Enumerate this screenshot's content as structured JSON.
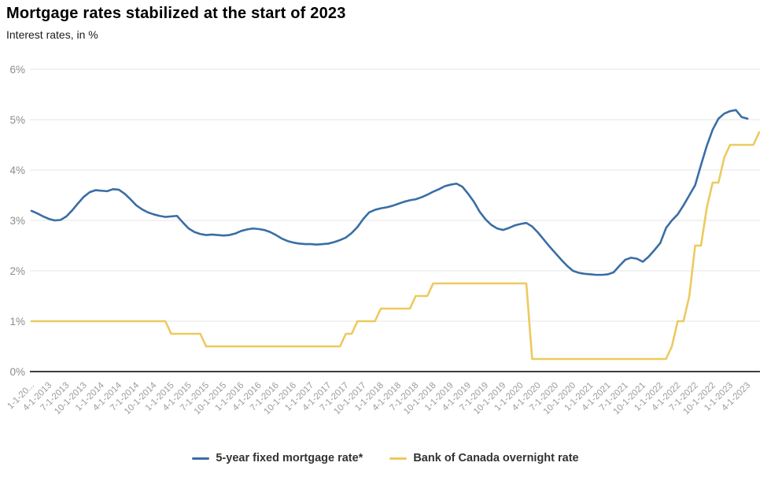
{
  "header": {
    "title": "Mortgage rates stabilized at the start of 2023",
    "subtitle": "Interest rates, in %"
  },
  "legend": {
    "items": [
      {
        "label": "5-year fixed mortgage rate*"
      },
      {
        "label": "Bank of Canada overnight rate"
      }
    ]
  },
  "chart_data": {
    "type": "line",
    "title": "Mortgage rates stabilized at the start of 2023",
    "subtitle": "Interest rates, in %",
    "x_unit": "monthly from 1-2013",
    "x_tick_labels": [
      "1-1-20...",
      "4-1-2013",
      "7-1-2013",
      "10-1-2013",
      "1-1-2014",
      "4-1-2014",
      "7-1-2014",
      "10-1-2014",
      "1-1-2015",
      "4-1-2015",
      "7-1-2015",
      "10-1-2015",
      "1-1-2016",
      "4-1-2016",
      "7-1-2016",
      "10-1-2016",
      "1-1-2017",
      "4-1-2017",
      "7-1-2017",
      "10-1-2017",
      "1-1-2018",
      "4-1-2018",
      "7-1-2018",
      "10-1-2018",
      "1-1-2019",
      "4-1-2019",
      "7-1-2019",
      "10-1-2019",
      "1-1-2020",
      "4-1-2020",
      "7-1-2020",
      "10-1-2020",
      "1-1-2021",
      "4-1-2021",
      "7-1-2021",
      "10-1-2021",
      "1-1-2022",
      "4-1-2022",
      "7-1-2022",
      "10-1-2022",
      "1-1-2023",
      "4-1-2023"
    ],
    "y_ticks": [
      "0%",
      "1%",
      "2%",
      "3%",
      "4%",
      "5%",
      "6%"
    ],
    "ylim": [
      0,
      6
    ],
    "grid": true,
    "legend_position": "bottom",
    "colors": {
      "grid": "#e5e5e5",
      "baseline": "#3f3f3f",
      "y_label": "#8c8c8c",
      "x_label": "#9b9b9b"
    },
    "series": [
      {
        "name": "5-year fixed mortgage rate*",
        "color": "#3a6ea5",
        "values": [
          3.19,
          3.14,
          3.08,
          3.03,
          3.0,
          3.01,
          3.08,
          3.2,
          3.34,
          3.47,
          3.56,
          3.6,
          3.59,
          3.58,
          3.62,
          3.61,
          3.53,
          3.42,
          3.3,
          3.22,
          3.16,
          3.12,
          3.09,
          3.07,
          3.08,
          3.09,
          2.96,
          2.84,
          2.77,
          2.73,
          2.71,
          2.72,
          2.71,
          2.7,
          2.71,
          2.74,
          2.79,
          2.82,
          2.84,
          2.83,
          2.81,
          2.77,
          2.71,
          2.64,
          2.59,
          2.56,
          2.54,
          2.53,
          2.53,
          2.52,
          2.53,
          2.54,
          2.57,
          2.61,
          2.66,
          2.75,
          2.87,
          3.03,
          3.16,
          3.21,
          3.24,
          3.26,
          3.29,
          3.33,
          3.37,
          3.4,
          3.42,
          3.46,
          3.51,
          3.57,
          3.62,
          3.68,
          3.71,
          3.73,
          3.67,
          3.53,
          3.37,
          3.17,
          3.02,
          2.91,
          2.84,
          2.81,
          2.85,
          2.9,
          2.93,
          2.95,
          2.88,
          2.76,
          2.62,
          2.48,
          2.35,
          2.22,
          2.1,
          2.0,
          1.96,
          1.94,
          1.93,
          1.92,
          1.92,
          1.93,
          1.97,
          2.1,
          2.22,
          2.26,
          2.24,
          2.18,
          2.28,
          2.41,
          2.55,
          2.85,
          3.0,
          3.12,
          3.3,
          3.5,
          3.7,
          4.1,
          4.48,
          4.8,
          5.02,
          5.12,
          5.17,
          5.19,
          5.05,
          5.02
        ]
      },
      {
        "name": "Bank of Canada overnight rate",
        "color": "#ecca5e",
        "values": [
          1.0,
          1.0,
          1.0,
          1.0,
          1.0,
          1.0,
          1.0,
          1.0,
          1.0,
          1.0,
          1.0,
          1.0,
          1.0,
          1.0,
          1.0,
          1.0,
          1.0,
          1.0,
          1.0,
          1.0,
          1.0,
          1.0,
          1.0,
          1.0,
          0.75,
          0.75,
          0.75,
          0.75,
          0.75,
          0.75,
          0.5,
          0.5,
          0.5,
          0.5,
          0.5,
          0.5,
          0.5,
          0.5,
          0.5,
          0.5,
          0.5,
          0.5,
          0.5,
          0.5,
          0.5,
          0.5,
          0.5,
          0.5,
          0.5,
          0.5,
          0.5,
          0.5,
          0.5,
          0.5,
          0.75,
          0.75,
          1.0,
          1.0,
          1.0,
          1.0,
          1.25,
          1.25,
          1.25,
          1.25,
          1.25,
          1.25,
          1.5,
          1.5,
          1.5,
          1.75,
          1.75,
          1.75,
          1.75,
          1.75,
          1.75,
          1.75,
          1.75,
          1.75,
          1.75,
          1.75,
          1.75,
          1.75,
          1.75,
          1.75,
          1.75,
          1.75,
          0.25,
          0.25,
          0.25,
          0.25,
          0.25,
          0.25,
          0.25,
          0.25,
          0.25,
          0.25,
          0.25,
          0.25,
          0.25,
          0.25,
          0.25,
          0.25,
          0.25,
          0.25,
          0.25,
          0.25,
          0.25,
          0.25,
          0.25,
          0.25,
          0.5,
          1.0,
          1.0,
          1.5,
          2.5,
          2.5,
          3.25,
          3.75,
          3.75,
          4.25,
          4.5,
          4.5,
          4.5,
          4.5,
          4.5,
          4.75
        ]
      }
    ]
  }
}
